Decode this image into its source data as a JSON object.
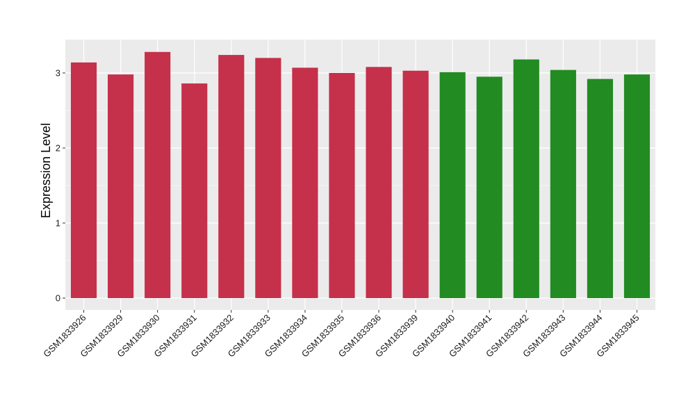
{
  "chart_data": {
    "type": "bar",
    "title": "",
    "xlabel": "",
    "ylabel": "Expression Level",
    "ylim": [
      0,
      3.45
    ],
    "yticks": [
      0,
      1,
      2,
      3
    ],
    "grid": true,
    "legend": "none",
    "colors": {
      "group_a": "#c5304a",
      "group_b": "#228b22",
      "panel": "#ebebeb",
      "grid": "#ffffff"
    },
    "categories": [
      "GSM1833926",
      "GSM1833929",
      "GSM1833930",
      "GSM1833931",
      "GSM1833932",
      "GSM1833933",
      "GSM1833934",
      "GSM1833935",
      "GSM1833936",
      "GSM1833939",
      "GSM1833940",
      "GSM1833941",
      "GSM1833942",
      "GSM1833943",
      "GSM1833944",
      "GSM1833945"
    ],
    "values": [
      3.14,
      2.98,
      3.28,
      2.86,
      3.24,
      3.2,
      3.07,
      3.0,
      3.08,
      3.03,
      3.01,
      2.95,
      3.18,
      3.04,
      2.92,
      2.98
    ],
    "groups": [
      "a",
      "a",
      "a",
      "a",
      "a",
      "a",
      "a",
      "a",
      "a",
      "a",
      "b",
      "b",
      "b",
      "b",
      "b",
      "b"
    ]
  }
}
